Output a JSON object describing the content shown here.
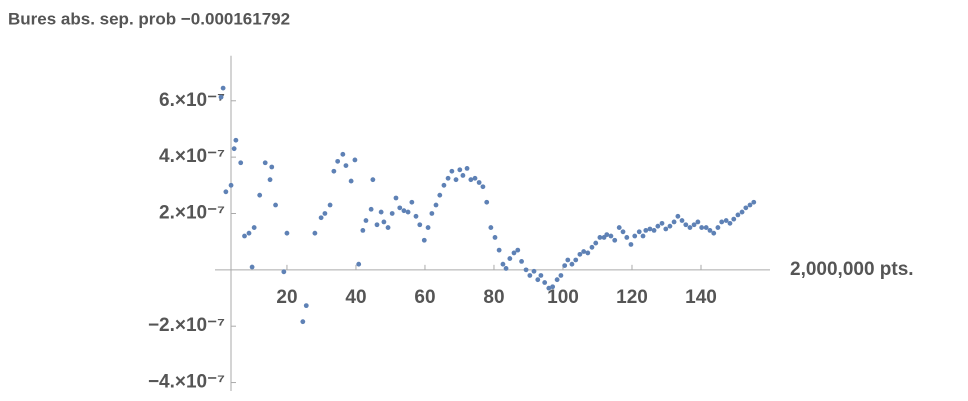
{
  "chart_data": {
    "type": "scatter",
    "title": "Bures abs. sep. prob −0.000161792",
    "x_label": "2,000,000 pts.",
    "color": "#5e81b5",
    "x": [
      0.9,
      1.5,
      2.3,
      3.8,
      4.7,
      5.2,
      6.6,
      7.7,
      9.0,
      9.9,
      10.5,
      12.1,
      13.7,
      15.1,
      15.6,
      16.7,
      19.1,
      20.0,
      24.6,
      25.6,
      28.1,
      29.9,
      31.0,
      32.5,
      33.6,
      34.7,
      36.2,
      37.1,
      38.6,
      39.7,
      40.8,
      42.0,
      42.9,
      44.4,
      44.9,
      46.1,
      47.3,
      48.1,
      49.3,
      50.5,
      51.6,
      52.7,
      53.9,
      55.1,
      56.2,
      57.4,
      58.5,
      59.8,
      60.9,
      62.0,
      63.2,
      64.3,
      65.5,
      66.7,
      67.8,
      69.0,
      70.1,
      71.0,
      72.2,
      73.3,
      74.5,
      75.7,
      76.8,
      77.9,
      79.1,
      80.3,
      81.5,
      82.6,
      83.5,
      84.6,
      85.8,
      86.9,
      88.0,
      89.3,
      90.4,
      91.6,
      92.7,
      93.6,
      94.7,
      95.9,
      97.0,
      98.3,
      99.4,
      100.5,
      101.4,
      102.6,
      103.7,
      104.9,
      106.0,
      107.2,
      108.4,
      109.5,
      110.7,
      111.9,
      112.7,
      113.9,
      115.0,
      116.3,
      117.4,
      118.5,
      119.7,
      120.8,
      122.1,
      123.2,
      124.0,
      125.2,
      126.4,
      127.5,
      128.7,
      129.8,
      131.0,
      132.2,
      133.3,
      134.5,
      135.6,
      136.8,
      138.0,
      139.1,
      140.2,
      141.5,
      142.6,
      143.7,
      144.9,
      146.0,
      147.3,
      148.4,
      149.5,
      150.7,
      151.9,
      153.0,
      154.2,
      155.3
    ],
    "values": [
      6.13e-07,
      6.45e-07,
      2.77e-07,
      3e-07,
      4.3e-07,
      4.6e-07,
      3.8e-07,
      1.2e-07,
      1.3e-07,
      1e-08,
      1.5e-07,
      2.65e-07,
      3.8e-07,
      3.2e-07,
      3.65e-07,
      2.3e-07,
      -7e-09,
      1.3e-07,
      -1.84e-07,
      -1.27e-07,
      1.3e-07,
      1.85e-07,
      2e-07,
      2.3e-07,
      3.5e-07,
      3.85e-07,
      4.1e-07,
      3.7e-07,
      3.15e-07,
      3.9e-07,
      2e-08,
      1.4e-07,
      1.75e-07,
      2.15e-07,
      3.2e-07,
      1.6e-07,
      2.05e-07,
      1.7e-07,
      1.5e-07,
      2e-07,
      2.55e-07,
      2.2e-07,
      2.1e-07,
      2.05e-07,
      2.4e-07,
      1.9e-07,
      1.6e-07,
      1.05e-07,
      1.5e-07,
      2e-07,
      2.3e-07,
      2.65e-07,
      3e-07,
      3.25e-07,
      3.5e-07,
      3.2e-07,
      3.55e-07,
      3.35e-07,
      3.6e-07,
      3.2e-07,
      3.25e-07,
      3.1e-07,
      2.95e-07,
      2.4e-07,
      1.5e-07,
      1.15e-07,
      7e-08,
      2e-08,
      5e-09,
      4e-08,
      6e-08,
      7e-08,
      3e-08,
      0.0,
      -2e-08,
      -5e-09,
      -3.5e-08,
      -2e-08,
      -4.5e-08,
      -6.5e-08,
      -6e-08,
      -3.5e-08,
      -2e-08,
      1.5e-08,
      3.5e-08,
      2e-08,
      3.5e-08,
      5.5e-08,
      6.5e-08,
      6e-08,
      8e-08,
      9.5e-08,
      1.15e-07,
      1.15e-07,
      1.25e-07,
      1.2e-07,
      1.05e-07,
      1.5e-07,
      1.35e-07,
      1.15e-07,
      9e-08,
      1.2e-07,
      1.35e-07,
      1.2e-07,
      1.4e-07,
      1.45e-07,
      1.4e-07,
      1.55e-07,
      1.65e-07,
      1.45e-07,
      1.55e-07,
      1.7e-07,
      1.9e-07,
      1.75e-07,
      1.6e-07,
      1.5e-07,
      1.6e-07,
      1.7e-07,
      1.5e-07,
      1.5e-07,
      1.4e-07,
      1.3e-07,
      1.5e-07,
      1.7e-07,
      1.75e-07,
      1.65e-07,
      1.8e-07,
      1.95e-07,
      2.05e-07,
      2.2e-07,
      2.3e-07,
      2.4e-07
    ],
    "xlim": [
      -5.2,
      160
    ],
    "ylim": [
      -4.3e-07,
      7.6e-07
    ],
    "xticks": [
      20,
      40,
      60,
      80,
      100,
      120,
      140
    ],
    "yticks": [
      {
        "value": -4e-07,
        "label": "−4.×10⁻⁷"
      },
      {
        "value": -2e-07,
        "label": "−2.×10⁻⁷"
      },
      {
        "value": 2e-07,
        "label": "2.×10⁻⁷"
      },
      {
        "value": 4e-07,
        "label": "4.×10⁻⁷"
      },
      {
        "value": 6e-07,
        "label": "6.×10⁻⁷"
      }
    ]
  }
}
